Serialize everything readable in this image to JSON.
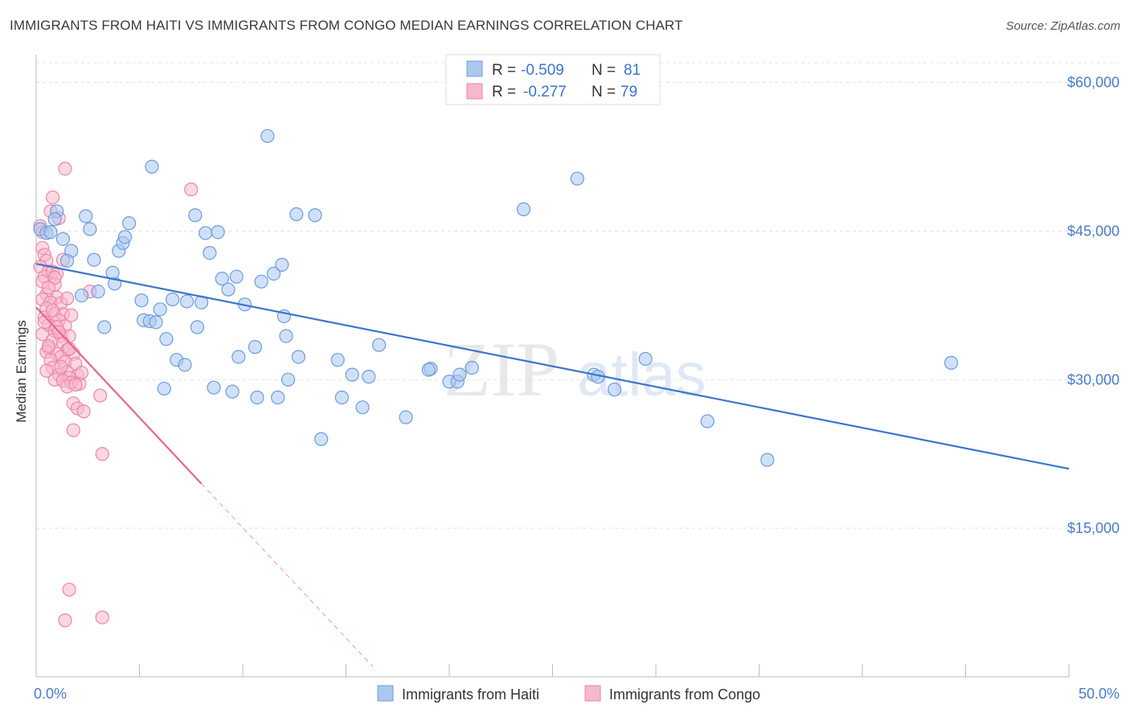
{
  "title": "IMMIGRANTS FROM HAITI VS IMMIGRANTS FROM CONGO MEDIAN EARNINGS CORRELATION CHART",
  "source": "Source: ZipAtlas.com",
  "watermark": {
    "zip": "ZIP",
    "atlas": "atlas"
  },
  "colors": {
    "haiti_fill": "#aac8f0",
    "haiti_stroke": "#6d9be0",
    "haiti_line": "#3a76cc",
    "congo_fill": "#f6b8cc",
    "congo_stroke": "#ec86a6",
    "congo_line": "#e46690",
    "grid": "#e3e3e3",
    "tick_text": "#4a7cc9"
  },
  "legend": {
    "rows": [
      {
        "r_label": "R =",
        "r_value": "-0.509",
        "n_label": "N =",
        "n_value": "81"
      },
      {
        "r_label": "R =",
        "r_value": "-0.277",
        "n_label": "N =",
        "n_value": "79"
      }
    ]
  },
  "chart_data": {
    "type": "scatter",
    "ylabel": "Median Earnings",
    "xlim": [
      0,
      50
    ],
    "ylim": [
      0,
      62000
    ],
    "x_tick_labels": [
      "0.0%",
      "50.0%"
    ],
    "y_ticks": [
      15000,
      30000,
      45000,
      60000
    ],
    "y_tick_labels": [
      "$15,000",
      "$30,000",
      "$45,000",
      "$60,000"
    ],
    "series": [
      {
        "name": "Immigrants from Haiti",
        "trend": {
          "x": [
            0,
            50
          ],
          "y": [
            41700,
            21000
          ],
          "extrapolated_to_x": 50
        },
        "points": [
          [
            0.2,
            45200
          ],
          [
            0.5,
            44800
          ],
          [
            0.7,
            44900
          ],
          [
            1.0,
            47000
          ],
          [
            0.9,
            46200
          ],
          [
            1.3,
            44200
          ],
          [
            1.7,
            43000
          ],
          [
            1.5,
            42000
          ],
          [
            2.4,
            46500
          ],
          [
            2.6,
            45200
          ],
          [
            2.8,
            42100
          ],
          [
            3.0,
            38900
          ],
          [
            2.2,
            38500
          ],
          [
            3.3,
            35300
          ],
          [
            3.8,
            39700
          ],
          [
            3.7,
            40800
          ],
          [
            4.0,
            43000
          ],
          [
            4.2,
            43800
          ],
          [
            4.3,
            44400
          ],
          [
            4.5,
            45800
          ],
          [
            5.1,
            38000
          ],
          [
            5.2,
            36000
          ],
          [
            5.5,
            35900
          ],
          [
            5.6,
            51500
          ],
          [
            5.8,
            35800
          ],
          [
            6.0,
            37100
          ],
          [
            6.3,
            34100
          ],
          [
            6.2,
            29100
          ],
          [
            6.6,
            38100
          ],
          [
            6.8,
            32000
          ],
          [
            7.2,
            31500
          ],
          [
            7.3,
            37900
          ],
          [
            7.7,
            46600
          ],
          [
            7.8,
            35300
          ],
          [
            8.0,
            37800
          ],
          [
            8.2,
            44800
          ],
          [
            8.4,
            42800
          ],
          [
            8.6,
            29200
          ],
          [
            8.8,
            44900
          ],
          [
            9.0,
            40200
          ],
          [
            9.3,
            39100
          ],
          [
            9.5,
            28800
          ],
          [
            9.7,
            40400
          ],
          [
            9.8,
            32300
          ],
          [
            10.1,
            37600
          ],
          [
            10.6,
            33300
          ],
          [
            10.7,
            28200
          ],
          [
            10.9,
            39900
          ],
          [
            11.2,
            54600
          ],
          [
            11.5,
            40700
          ],
          [
            11.7,
            28200
          ],
          [
            11.9,
            41600
          ],
          [
            12.0,
            36400
          ],
          [
            12.1,
            34400
          ],
          [
            12.2,
            30000
          ],
          [
            12.7,
            32300
          ],
          [
            12.6,
            46700
          ],
          [
            13.5,
            46600
          ],
          [
            13.8,
            24000
          ],
          [
            14.6,
            32000
          ],
          [
            14.8,
            28200
          ],
          [
            15.3,
            30500
          ],
          [
            15.8,
            27200
          ],
          [
            16.1,
            30300
          ],
          [
            16.6,
            33500
          ],
          [
            17.9,
            26200
          ],
          [
            19.1,
            31100
          ],
          [
            19.0,
            31000
          ],
          [
            20.0,
            29800
          ],
          [
            20.4,
            29800
          ],
          [
            20.5,
            30500
          ],
          [
            21.1,
            31200
          ],
          [
            23.6,
            47200
          ],
          [
            26.2,
            50300
          ],
          [
            27.0,
            30500
          ],
          [
            27.2,
            30300
          ],
          [
            28.0,
            29000
          ],
          [
            29.5,
            32100
          ],
          [
            32.5,
            25800
          ],
          [
            35.4,
            21900
          ],
          [
            44.3,
            31700
          ]
        ]
      },
      {
        "name": "Immigrants from Congo",
        "trend": {
          "x": [
            0,
            8.0
          ],
          "y": [
            37300,
            19500
          ],
          "extrapolated_to_x": 16.3
        },
        "points": [
          [
            0.2,
            45500
          ],
          [
            0.3,
            44900
          ],
          [
            0.3,
            43300
          ],
          [
            0.4,
            42600
          ],
          [
            0.5,
            42000
          ],
          [
            0.2,
            41400
          ],
          [
            0.6,
            40900
          ],
          [
            0.4,
            40400
          ],
          [
            0.8,
            40900
          ],
          [
            1.0,
            40700
          ],
          [
            0.3,
            39900
          ],
          [
            0.9,
            39600
          ],
          [
            0.5,
            38600
          ],
          [
            1.0,
            38300
          ],
          [
            0.3,
            38100
          ],
          [
            0.7,
            37800
          ],
          [
            1.2,
            37700
          ],
          [
            0.5,
            37200
          ],
          [
            0.9,
            36600
          ],
          [
            1.3,
            36600
          ],
          [
            0.4,
            36300
          ],
          [
            1.1,
            36000
          ],
          [
            0.6,
            35500
          ],
          [
            1.4,
            35400
          ],
          [
            0.9,
            34900
          ],
          [
            0.3,
            34600
          ],
          [
            1.2,
            34400
          ],
          [
            1.6,
            34400
          ],
          [
            0.8,
            34000
          ],
          [
            1.3,
            33700
          ],
          [
            0.6,
            33200
          ],
          [
            1.5,
            33000
          ],
          [
            0.5,
            32800
          ],
          [
            1.0,
            32600
          ],
          [
            1.8,
            32600
          ],
          [
            1.2,
            32300
          ],
          [
            0.7,
            32000
          ],
          [
            1.4,
            31800
          ],
          [
            1.9,
            31600
          ],
          [
            0.8,
            31200
          ],
          [
            1.5,
            30800
          ],
          [
            1.1,
            30500
          ],
          [
            2.0,
            30400
          ],
          [
            1.6,
            30200
          ],
          [
            0.9,
            30000
          ],
          [
            1.3,
            29900
          ],
          [
            1.7,
            29700
          ],
          [
            2.1,
            29600
          ],
          [
            1.5,
            29300
          ],
          [
            1.8,
            27600
          ],
          [
            2.0,
            27100
          ],
          [
            1.8,
            24900
          ],
          [
            1.4,
            51300
          ],
          [
            0.8,
            48400
          ],
          [
            3.1,
            28400
          ],
          [
            3.2,
            22500
          ],
          [
            0.7,
            47000
          ],
          [
            1.1,
            46300
          ],
          [
            7.5,
            49200
          ],
          [
            1.6,
            8800
          ],
          [
            1.4,
            5700
          ],
          [
            3.2,
            6000
          ],
          [
            2.6,
            38900
          ],
          [
            1.3,
            42100
          ],
          [
            0.9,
            40300
          ],
          [
            1.7,
            36500
          ],
          [
            0.4,
            35800
          ],
          [
            1.0,
            35300
          ],
          [
            0.6,
            33400
          ],
          [
            1.2,
            31300
          ],
          [
            0.5,
            30900
          ],
          [
            2.2,
            30700
          ],
          [
            1.5,
            38200
          ],
          [
            0.8,
            37000
          ],
          [
            1.1,
            34800
          ],
          [
            1.6,
            33100
          ],
          [
            1.9,
            29500
          ],
          [
            2.3,
            26800
          ],
          [
            0.6,
            39300
          ]
        ]
      }
    ]
  }
}
